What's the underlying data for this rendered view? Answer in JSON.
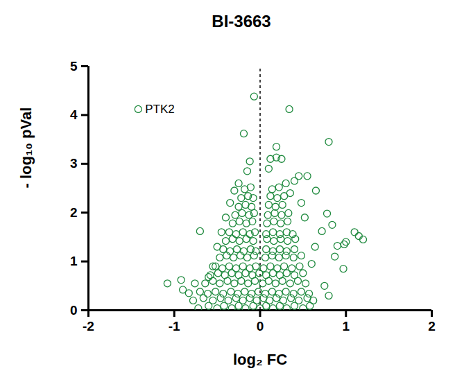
{
  "chart_data": {
    "type": "scatter",
    "title": "BI-3663",
    "x_label": "log₂ FC",
    "y_label": "- log₁₀ pVal",
    "color": "#1f8a3e",
    "marker": "open circle",
    "xlim": [
      -2,
      2
    ],
    "xticks": [
      -2,
      -1,
      0,
      1,
      2
    ],
    "ylim": [
      0,
      5
    ],
    "yticks": [
      0,
      1,
      2,
      3,
      4,
      5
    ],
    "grid": false,
    "reference_lines": [
      {
        "x": 0,
        "line_style": "dashed"
      }
    ],
    "annotations": [
      {
        "text": "PTK2",
        "x": -1.42,
        "y": 4.12
      }
    ],
    "x": [
      -1.42,
      -0.07,
      0.34,
      -0.19,
      0.8,
      0.19,
      0.19,
      0.12,
      0.25,
      -0.12,
      0.1,
      0.45,
      0.55,
      0.4,
      0.65,
      0.78,
      0.84,
      0.72,
      1.1,
      1.15,
      1.2,
      1.0,
      0.98,
      0.9,
      0.97,
      0.87,
      -0.7,
      -1.08,
      -0.92,
      -0.9,
      -0.83,
      -0.76,
      -0.6,
      -0.5,
      -0.55,
      0.75,
      0.8,
      0.64,
      0.6,
      0.52,
      0.48,
      0.3,
      0.35,
      -0.15,
      -0.25,
      -0.3,
      -0.35,
      -0.4,
      -0.45,
      -0.72,
      -0.6,
      -0.5,
      -0.42,
      -0.33,
      -0.25,
      -0.17,
      -0.08,
      0.0,
      0.07,
      0.15,
      0.23,
      0.31,
      0.4,
      0.5,
      0.58,
      -0.78,
      -0.66,
      -0.55,
      -0.46,
      -0.37,
      -0.28,
      -0.2,
      -0.12,
      -0.04,
      0.04,
      0.11,
      0.19,
      0.27,
      0.36,
      0.45,
      0.55,
      0.62,
      -0.7,
      -0.61,
      -0.52,
      -0.43,
      -0.34,
      -0.26,
      -0.18,
      -0.1,
      -0.02,
      0.06,
      0.14,
      0.22,
      0.3,
      0.39,
      0.48,
      0.57,
      -0.64,
      -0.55,
      -0.47,
      -0.38,
      -0.3,
      -0.22,
      -0.14,
      -0.06,
      0.03,
      0.1,
      0.18,
      0.26,
      0.35,
      0.44,
      0.53,
      -0.58,
      -0.49,
      -0.41,
      -0.33,
      -0.25,
      -0.17,
      -0.09,
      -0.01,
      0.07,
      0.15,
      0.23,
      0.31,
      0.4,
      0.5,
      -0.52,
      -0.44,
      -0.36,
      -0.28,
      -0.2,
      -0.12,
      -0.05,
      0.04,
      0.12,
      0.2,
      0.28,
      0.37,
      0.46,
      -0.47,
      -0.39,
      -0.31,
      -0.23,
      -0.15,
      -0.07,
      0.06,
      0.14,
      0.22,
      0.3,
      0.39,
      0.48,
      -0.43,
      -0.35,
      -0.27,
      -0.19,
      -0.11,
      -0.05,
      0.07,
      0.15,
      0.23,
      0.31,
      0.4,
      -0.4,
      -0.32,
      -0.24,
      -0.16,
      -0.08,
      0.08,
      0.16,
      0.24,
      0.32,
      0.41,
      -0.36,
      -0.28,
      -0.2,
      -0.12,
      -0.06,
      0.07,
      0.15,
      0.23,
      0.31,
      0.38,
      -0.32,
      -0.24,
      -0.16,
      -0.09,
      0.08,
      0.16,
      0.24,
      0.32,
      -0.29,
      -0.21,
      -0.13,
      -0.07,
      0.09,
      0.17,
      0.25,
      0.33,
      -0.25,
      -0.17,
      -0.1,
      0.1,
      0.18,
      0.26,
      -0.22,
      -0.14,
      -0.08,
      0.12,
      0.2,
      0.28,
      -0.18,
      -0.11,
      0.14,
      0.22
    ],
    "values": [
      4.12,
      4.38,
      4.12,
      3.62,
      3.45,
      3.35,
      3.13,
      3.1,
      3.1,
      3.05,
      2.9,
      2.75,
      2.75,
      2.65,
      2.45,
      1.98,
      1.75,
      1.62,
      1.6,
      1.52,
      1.45,
      1.4,
      1.35,
      1.32,
      0.85,
      1.1,
      1.62,
      0.55,
      0.62,
      0.42,
      0.35,
      0.55,
      0.68,
      1.3,
      0.9,
      0.5,
      0.3,
      1.3,
      0.95,
      1.9,
      2.2,
      2.6,
      2.4,
      2.85,
      2.6,
      2.45,
      2.2,
      1.9,
      1.6,
      0.04,
      0.09,
      0.04,
      0.09,
      0.04,
      0.09,
      0.04,
      0.09,
      0.04,
      0.09,
      0.04,
      0.09,
      0.04,
      0.09,
      0.04,
      0.09,
      0.2,
      0.25,
      0.2,
      0.25,
      0.2,
      0.25,
      0.2,
      0.25,
      0.2,
      0.25,
      0.2,
      0.25,
      0.2,
      0.25,
      0.2,
      0.25,
      0.2,
      0.38,
      0.34,
      0.38,
      0.34,
      0.38,
      0.34,
      0.38,
      0.34,
      0.38,
      0.34,
      0.38,
      0.34,
      0.38,
      0.34,
      0.38,
      0.34,
      0.55,
      0.6,
      0.55,
      0.6,
      0.55,
      0.6,
      0.55,
      0.6,
      0.55,
      0.6,
      0.55,
      0.6,
      0.55,
      0.6,
      0.55,
      0.72,
      0.76,
      0.72,
      0.76,
      0.72,
      0.76,
      0.72,
      0.76,
      0.72,
      0.76,
      0.72,
      0.76,
      0.72,
      0.76,
      0.9,
      0.86,
      0.9,
      0.86,
      0.9,
      0.86,
      0.9,
      0.86,
      0.9,
      0.86,
      0.9,
      0.86,
      0.9,
      1.08,
      1.12,
      1.08,
      1.12,
      1.08,
      1.12,
      1.08,
      1.12,
      1.08,
      1.12,
      1.08,
      1.12,
      1.25,
      1.21,
      1.25,
      1.21,
      1.25,
      1.21,
      1.25,
      1.21,
      1.25,
      1.21,
      1.25,
      1.42,
      1.46,
      1.42,
      1.46,
      1.42,
      1.46,
      1.42,
      1.46,
      1.42,
      1.46,
      1.6,
      1.56,
      1.6,
      1.56,
      1.6,
      1.56,
      1.6,
      1.56,
      1.6,
      1.56,
      1.78,
      1.82,
      1.78,
      1.82,
      1.78,
      1.82,
      1.78,
      1.82,
      1.95,
      1.99,
      1.95,
      1.99,
      1.95,
      1.99,
      1.95,
      1.99,
      2.12,
      2.16,
      2.12,
      2.16,
      2.12,
      2.16,
      2.3,
      2.34,
      2.3,
      2.34,
      2.3,
      2.34,
      2.48,
      2.52,
      2.48,
      2.52
    ]
  }
}
